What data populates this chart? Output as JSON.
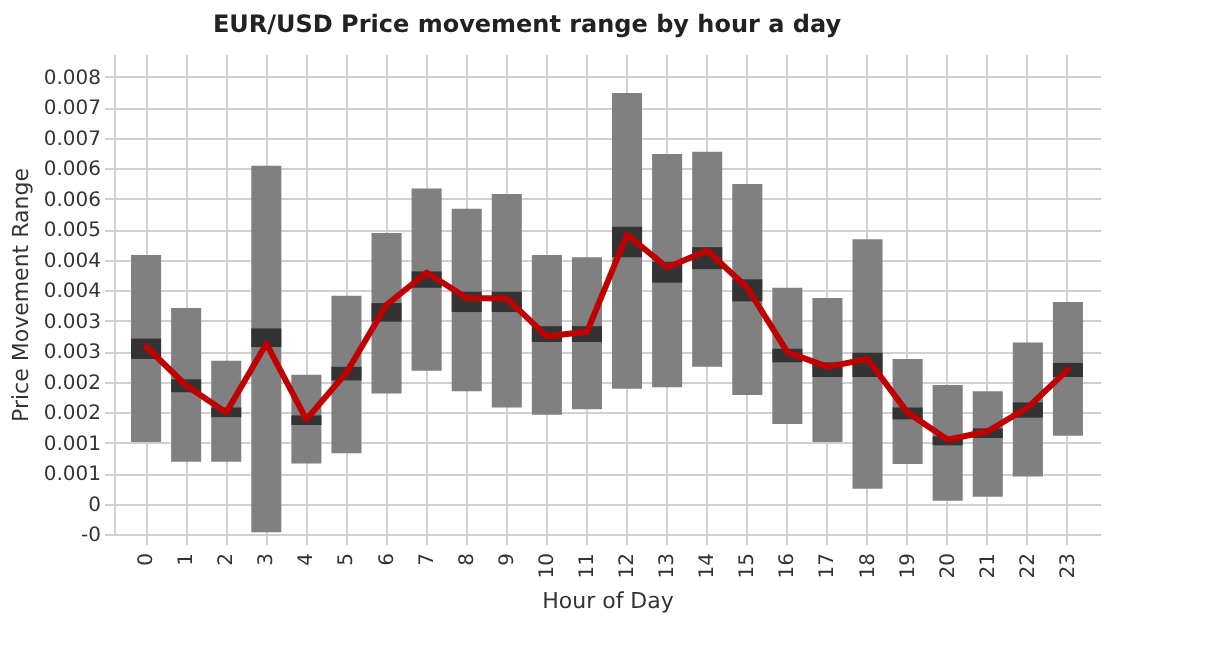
{
  "chart_data": {
    "type": "bar",
    "title": "EUR/USD Price movement range by hour a day",
    "xlabel": "Hour of Day",
    "ylabel": "Price Movement Range",
    "categories": [
      "0",
      "1",
      "2",
      "3",
      "4",
      "5",
      "6",
      "7",
      "8",
      "9",
      "10",
      "11",
      "12",
      "13",
      "14",
      "15",
      "16",
      "17",
      "18",
      "19",
      "20",
      "21",
      "22",
      "23"
    ],
    "ylim": [
      -0.0004,
      0.0081
    ],
    "yticks": [
      {
        "value": -0.0004,
        "label": "-0"
      },
      {
        "value": 0.00014,
        "label": "0"
      },
      {
        "value": 0.00068,
        "label": "0.001"
      },
      {
        "value": 0.00122,
        "label": "0.001"
      },
      {
        "value": 0.00176,
        "label": "0.002"
      },
      {
        "value": 0.0023,
        "label": "0.002"
      },
      {
        "value": 0.00284,
        "label": "0.003"
      },
      {
        "value": 0.00338,
        "label": "0.003"
      },
      {
        "value": 0.00392,
        "label": "0.004"
      },
      {
        "value": 0.00446,
        "label": "0.004"
      },
      {
        "value": 0.005,
        "label": "0.005"
      },
      {
        "value": 0.00554,
        "label": "0.006"
      },
      {
        "value": 0.00608,
        "label": "0.006"
      },
      {
        "value": 0.00662,
        "label": "0.007"
      },
      {
        "value": 0.00716,
        "label": "0.007"
      },
      {
        "value": 0.0077,
        "label": "0.008"
      }
    ],
    "grid": true,
    "series": [
      {
        "color": "#808080",
        "base": [
          0.00123,
          0.00088,
          0.00088,
          -0.00037,
          0.00085,
          0.00103,
          0.00209,
          0.00249,
          0.00213,
          0.00184,
          0.00171,
          0.00181,
          0.00217,
          0.0022,
          0.00256,
          0.00206,
          0.00155,
          0.00123,
          0.0004,
          0.00084,
          0.00019,
          0.00026,
          0.00062,
          0.00134
        ],
        "values": [
          0.00331,
          0.00272,
          0.00179,
          0.00649,
          0.00157,
          0.00279,
          0.00284,
          0.00323,
          0.00323,
          0.00378,
          0.00283,
          0.00269,
          0.00524,
          0.00413,
          0.00381,
          0.00374,
          0.00241,
          0.00255,
          0.00442,
          0.00186,
          0.00205,
          0.00187,
          0.00237,
          0.00237
        ]
      },
      {
        "color": "#333333",
        "base": [
          0.0027,
          0.00211,
          0.00167,
          0.00291,
          0.00153,
          0.00232,
          0.00336,
          0.00396,
          0.00353,
          0.00353,
          0.003,
          0.003,
          0.0045,
          0.00405,
          0.00429,
          0.00372,
          0.00264,
          0.00238,
          0.00238,
          0.00163,
          0.00117,
          0.0013,
          0.00166,
          0.00238
        ],
        "values": [
          0.00036,
          0.00023,
          0.00017,
          0.00033,
          0.00017,
          0.00024,
          0.00033,
          0.00029,
          0.00036,
          0.00036,
          0.00028,
          0.00028,
          0.00054,
          0.00037,
          0.00039,
          0.00039,
          0.00024,
          0.00026,
          0.00043,
          0.00021,
          0.00016,
          0.00017,
          0.00027,
          0.00025
        ]
      },
      {
        "type": "line",
        "color": "#c00000",
        "values": [
          0.00292,
          0.00223,
          0.00175,
          0.00297,
          0.00163,
          0.00246,
          0.00366,
          0.00423,
          0.00378,
          0.00377,
          0.0031,
          0.00318,
          0.0049,
          0.00432,
          0.00462,
          0.00396,
          0.00282,
          0.00256,
          0.0027,
          0.00175,
          0.00127,
          0.00142,
          0.00184,
          0.00251
        ]
      }
    ]
  }
}
